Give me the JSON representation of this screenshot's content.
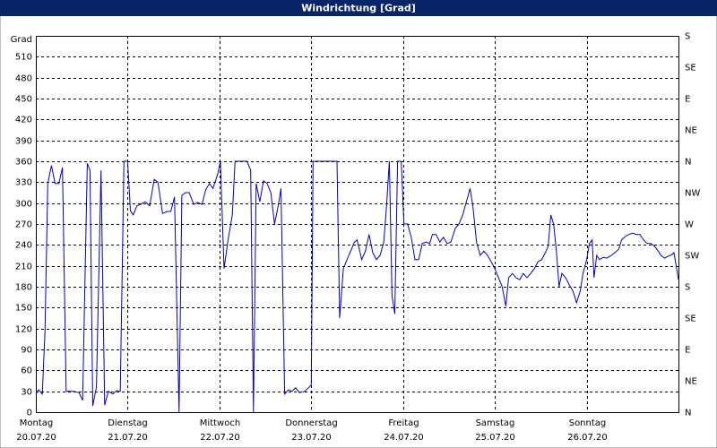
{
  "chart_data": {
    "type": "line",
    "title": "Windrichtung [Grad]",
    "y_label": "Grad",
    "xlim": [
      0,
      7
    ],
    "xticks": [
      {
        "value": 0,
        "label": "Montag",
        "date": "20.07.20"
      },
      {
        "value": 1,
        "label": "Dienstag",
        "date": "21.07.20"
      },
      {
        "value": 2,
        "label": "Mittwoch",
        "date": "22.07.20"
      },
      {
        "value": 3,
        "label": "Donnerstag",
        "date": "23.07.20"
      },
      {
        "value": 4,
        "label": "Freitag",
        "date": "24.07.20"
      },
      {
        "value": 5,
        "label": "Samstag",
        "date": "25.07.20"
      },
      {
        "value": 6,
        "label": "Sonntag",
        "date": "26.07.20"
      }
    ],
    "ylim": [
      0,
      540
    ],
    "yticks": [
      0,
      30,
      60,
      90,
      120,
      150,
      180,
      210,
      240,
      270,
      300,
      330,
      360,
      390,
      420,
      450,
      480,
      510
    ],
    "y2lim": [
      0,
      540
    ],
    "y2ticks": [
      {
        "value": 0,
        "label": "N"
      },
      {
        "value": 45,
        "label": "NE"
      },
      {
        "value": 90,
        "label": "E"
      },
      {
        "value": 135,
        "label": "SE"
      },
      {
        "value": 180,
        "label": "S"
      },
      {
        "value": 225,
        "label": "SW"
      },
      {
        "value": 270,
        "label": "W"
      },
      {
        "value": 315,
        "label": "NW"
      },
      {
        "value": 360,
        "label": "N"
      },
      {
        "value": 405,
        "label": "NE"
      },
      {
        "value": 450,
        "label": "E"
      },
      {
        "value": 495,
        "label": "SE"
      },
      {
        "value": 540,
        "label": "S"
      }
    ],
    "grid": true,
    "x": [
      0.0,
      0.03,
      0.07,
      0.1,
      0.13,
      0.17,
      0.21,
      0.25,
      0.29,
      0.33,
      0.41,
      0.47,
      0.51,
      0.56,
      0.59,
      0.62,
      0.66,
      0.71,
      0.75,
      0.79,
      0.84,
      0.88,
      0.92,
      0.96,
      1.0,
      1.03,
      1.06,
      1.1,
      1.14,
      1.19,
      1.24,
      1.29,
      1.33,
      1.38,
      1.43,
      1.47,
      1.51,
      1.56,
      1.59,
      1.63,
      1.67,
      1.72,
      1.76,
      1.81,
      1.85,
      1.89,
      1.93,
      1.98,
      2.01,
      2.05,
      2.09,
      2.14,
      2.17,
      2.25,
      2.3,
      2.34,
      2.37,
      2.4,
      2.44,
      2.48,
      2.52,
      2.56,
      2.6,
      2.64,
      2.67,
      2.71,
      2.75,
      2.79,
      2.83,
      2.87,
      2.93,
      2.97,
      3.0,
      3.02,
      3.24,
      3.28,
      3.31,
      3.35,
      3.39,
      3.43,
      3.47,
      3.5,
      3.55,
      3.59,
      3.63,
      3.67,
      3.71,
      3.75,
      3.79,
      3.82,
      3.85,
      3.88,
      3.91,
      3.94,
      3.98,
      4.01,
      4.05,
      4.09,
      4.13,
      4.17,
      4.21,
      4.25,
      4.29,
      4.32,
      4.36,
      4.4,
      4.44,
      4.48,
      4.52,
      4.57,
      4.61,
      4.65,
      4.69,
      4.73,
      4.76,
      4.8,
      4.84,
      4.88,
      4.92,
      4.96,
      5.0,
      5.04,
      5.08,
      5.12,
      5.15,
      5.19,
      5.23,
      5.27,
      5.31,
      5.35,
      5.39,
      5.43,
      5.47,
      5.51,
      5.55,
      5.58,
      5.61,
      5.64,
      5.67,
      5.7,
      5.73,
      5.77,
      5.81,
      5.85,
      5.89,
      5.93,
      5.96,
      6.0,
      6.03,
      6.06,
      6.08,
      6.11,
      6.14,
      6.18,
      6.22,
      6.27,
      6.31,
      6.35,
      6.38,
      6.42,
      6.46,
      6.5,
      6.54,
      6.58,
      6.62,
      6.66,
      6.7,
      6.74,
      6.78,
      6.81,
      6.85,
      6.89,
      6.93,
      6.95,
      6.98,
      7.0
    ],
    "series": [
      {
        "color": "#0000c0",
        "values": [
          26,
          32,
          26,
          116,
          328,
          354,
          328,
          328,
          351,
          30,
          30,
          28,
          17,
          357,
          347,
          9,
          36,
          347,
          10,
          30,
          26,
          31,
          30,
          360,
          360,
          289,
          283,
          296,
          298,
          302,
          296,
          334,
          330,
          285,
          288,
          288,
          309,
          0,
          311,
          315,
          315,
          298,
          301,
          298,
          319,
          328,
          321,
          341,
          360,
          206,
          244,
          283,
          360,
          360,
          360,
          347,
          0,
          328,
          302,
          332,
          328,
          315,
          270,
          296,
          321,
          26,
          32,
          30,
          35,
          28,
          30,
          35,
          39,
          360,
          360,
          360,
          135,
          206,
          219,
          231,
          244,
          247,
          219,
          231,
          255,
          229,
          219,
          225,
          244,
          296,
          360,
          167,
          141,
          360,
          360,
          270,
          270,
          251,
          219,
          219,
          242,
          244,
          242,
          255,
          255,
          244,
          251,
          242,
          244,
          264,
          270,
          283,
          302,
          321,
          296,
          244,
          225,
          231,
          225,
          216,
          206,
          193,
          180,
          152,
          193,
          199,
          193,
          190,
          199,
          193,
          199,
          206,
          216,
          219,
          229,
          238,
          283,
          270,
          231,
          180,
          199,
          193,
          183,
          174,
          157,
          174,
          199,
          219,
          242,
          247,
          193,
          225,
          219,
          222,
          221,
          225,
          229,
          234,
          247,
          252,
          255,
          257,
          255,
          255,
          247,
          242,
          242,
          238,
          231,
          225,
          221,
          224,
          226,
          229,
          206,
          190
        ]
      }
    ]
  }
}
